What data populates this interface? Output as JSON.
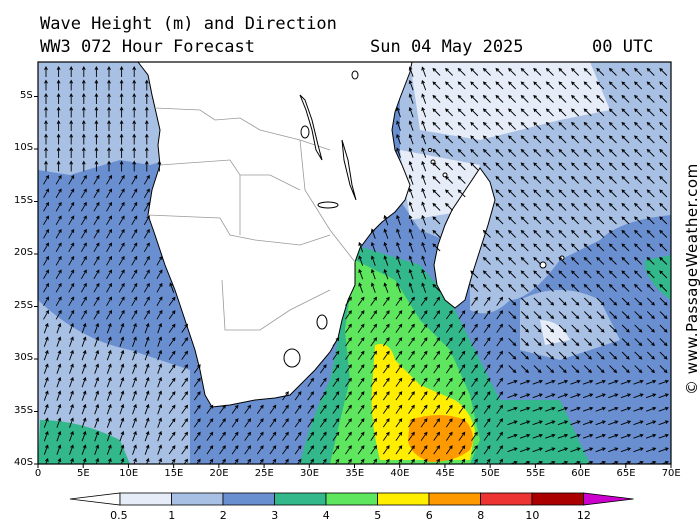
{
  "title": {
    "line1": "Wave Height (m) and Direction",
    "model": "WW3 072 Hour Forecast",
    "date": "Sun 04 May 2025",
    "time": "00 UTC"
  },
  "watermark": "© www.PassageWeather.com",
  "axes": {
    "latitudes": [
      "5S",
      "10S",
      "15S",
      "20S",
      "25S",
      "30S",
      "35S",
      "40S"
    ],
    "longitudes": [
      "0",
      "5E",
      "10E",
      "15E",
      "20E",
      "25E",
      "30E",
      "35E",
      "40E",
      "45E",
      "50E",
      "55E",
      "60E",
      "65E",
      "70E"
    ]
  },
  "colorbar": {
    "unit": "m",
    "labels": [
      "0.5",
      "1",
      "2",
      "3",
      "4",
      "5",
      "6",
      "8",
      "10",
      "12"
    ],
    "colors": [
      "#e6ecf8",
      "#a8c0e4",
      "#6a8fd0",
      "#33b88c",
      "#5ee65e",
      "#ffee00",
      "#ff9900",
      "#ee3333",
      "#aa0000",
      "#cc00cc"
    ]
  },
  "colors": {
    "land": "#ffffff",
    "coast": "#000000",
    "border": "#999999",
    "arrow": "#000000"
  }
}
